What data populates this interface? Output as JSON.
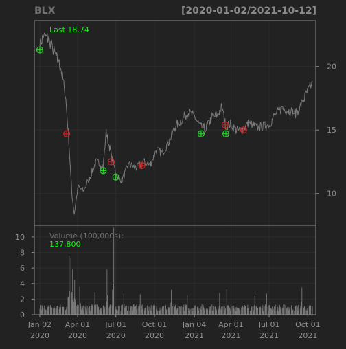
{
  "chart_data": {
    "type": "line",
    "symbol": "BLX",
    "date_range": "[2020-01-02/2021-10-12]",
    "theme": {
      "background": "#222222",
      "panel_border": "#8a8a8a",
      "price_line": "#7a7a7a",
      "grid": "#2c2c2c",
      "axis_text": "#8f8f8f",
      "highlight_text": "#00ff00",
      "buy_marker": "#33cc33",
      "sell_marker": "#cc2222"
    },
    "price_panel": {
      "last_label": "Last 18.74",
      "y_ticks": [
        10,
        15,
        20
      ],
      "ylim": [
        7.5,
        23.6
      ],
      "anchor_points": [
        {
          "date": "2020-01-02",
          "value": 21.6
        },
        {
          "date": "2020-01-10",
          "value": 22.4
        },
        {
          "date": "2020-01-24",
          "value": 22.1
        },
        {
          "date": "2020-02-07",
          "value": 21.0
        },
        {
          "date": "2020-02-21",
          "value": 19.9
        },
        {
          "date": "2020-03-03",
          "value": 17.8
        },
        {
          "date": "2020-03-10",
          "value": 14.8
        },
        {
          "date": "2020-03-18",
          "value": 10.1
        },
        {
          "date": "2020-03-24",
          "value": 8.4
        },
        {
          "date": "2020-04-02",
          "value": 10.5
        },
        {
          "date": "2020-04-15",
          "value": 10.2
        },
        {
          "date": "2020-05-01",
          "value": 11.4
        },
        {
          "date": "2020-05-15",
          "value": 12.5
        },
        {
          "date": "2020-06-01",
          "value": 12.2
        },
        {
          "date": "2020-06-08",
          "value": 14.8
        },
        {
          "date": "2020-06-20",
          "value": 13.1
        },
        {
          "date": "2020-07-01",
          "value": 11.6
        },
        {
          "date": "2020-07-15",
          "value": 11.0
        },
        {
          "date": "2020-08-01",
          "value": 12.3
        },
        {
          "date": "2020-08-20",
          "value": 12.0
        },
        {
          "date": "2020-09-05",
          "value": 12.5
        },
        {
          "date": "2020-09-20",
          "value": 12.2
        },
        {
          "date": "2020-10-05",
          "value": 13.4
        },
        {
          "date": "2020-10-20",
          "value": 13.2
        },
        {
          "date": "2020-11-05",
          "value": 14.1
        },
        {
          "date": "2020-11-20",
          "value": 15.3
        },
        {
          "date": "2020-12-05",
          "value": 15.8
        },
        {
          "date": "2020-12-20",
          "value": 16.4
        },
        {
          "date": "2021-01-05",
          "value": 16.0
        },
        {
          "date": "2021-01-20",
          "value": 15.2
        },
        {
          "date": "2021-02-01",
          "value": 15.1
        },
        {
          "date": "2021-02-15",
          "value": 16.0
        },
        {
          "date": "2021-03-01",
          "value": 16.2
        },
        {
          "date": "2021-03-10",
          "value": 16.8
        },
        {
          "date": "2021-03-20",
          "value": 15.3
        },
        {
          "date": "2021-04-01",
          "value": 15.5
        },
        {
          "date": "2021-04-15",
          "value": 14.9
        },
        {
          "date": "2021-05-01",
          "value": 15.1
        },
        {
          "date": "2021-05-15",
          "value": 15.6
        },
        {
          "date": "2021-06-01",
          "value": 15.2
        },
        {
          "date": "2021-06-20",
          "value": 15.3
        },
        {
          "date": "2021-07-01",
          "value": 15.4
        },
        {
          "date": "2021-07-15",
          "value": 16.2
        },
        {
          "date": "2021-08-01",
          "value": 16.7
        },
        {
          "date": "2021-08-20",
          "value": 16.5
        },
        {
          "date": "2021-09-05",
          "value": 16.3
        },
        {
          "date": "2021-09-20",
          "value": 17.3
        },
        {
          "date": "2021-10-01",
          "value": 18.0
        },
        {
          "date": "2021-10-12",
          "value": 18.74
        }
      ],
      "buy_markers": [
        {
          "date": "2020-01-02",
          "value": 21.3
        },
        {
          "date": "2020-06-01",
          "value": 11.8
        },
        {
          "date": "2020-07-01",
          "value": 11.3
        },
        {
          "date": "2021-01-20",
          "value": 14.7
        },
        {
          "date": "2021-03-20",
          "value": 14.7
        }
      ],
      "sell_markers": [
        {
          "date": "2020-03-06",
          "value": 14.7
        },
        {
          "date": "2020-06-20",
          "value": 12.5
        },
        {
          "date": "2020-09-01",
          "value": 12.2
        },
        {
          "date": "2021-03-18",
          "value": 15.4
        },
        {
          "date": "2021-05-01",
          "value": 15.0
        }
      ]
    },
    "volume_panel": {
      "title": "Volume (100,000s):",
      "last_value": "137,800",
      "y_ticks": [
        0,
        2,
        4,
        6,
        8,
        10
      ],
      "ylim": [
        0,
        11.5
      ],
      "baseline": 1.0,
      "spikes": [
        {
          "date": "2020-03-12",
          "value": 7.6
        },
        {
          "date": "2020-03-16",
          "value": 7.3
        },
        {
          "date": "2020-03-20",
          "value": 5.8
        },
        {
          "date": "2020-03-25",
          "value": 4.5
        },
        {
          "date": "2020-04-06",
          "value": 3.6
        },
        {
          "date": "2020-05-12",
          "value": 2.9
        },
        {
          "date": "2020-06-10",
          "value": 5.8
        },
        {
          "date": "2020-06-26",
          "value": 11.2
        },
        {
          "date": "2020-07-20",
          "value": 2.7
        },
        {
          "date": "2020-08-28",
          "value": 2.6
        },
        {
          "date": "2020-11-10",
          "value": 3.2
        },
        {
          "date": "2020-12-18",
          "value": 2.5
        },
        {
          "date": "2021-03-05",
          "value": 2.8
        },
        {
          "date": "2021-03-22",
          "value": 3.3
        },
        {
          "date": "2021-05-28",
          "value": 2.4
        },
        {
          "date": "2021-06-25",
          "value": 2.7
        },
        {
          "date": "2021-09-17",
          "value": 3.5
        }
      ]
    },
    "x_axis": {
      "range": [
        "2019-12-20",
        "2021-10-20"
      ],
      "ticks": [
        {
          "date": "2020-01-02",
          "line1": "Jan 02",
          "line2": "2020"
        },
        {
          "date": "2020-04-01",
          "line1": "Apr 01",
          "line2": "2020"
        },
        {
          "date": "2020-07-01",
          "line1": "Jul 01",
          "line2": "2020"
        },
        {
          "date": "2020-10-01",
          "line1": "Oct 01",
          "line2": "2020"
        },
        {
          "date": "2021-01-04",
          "line1": "Jan 04",
          "line2": "2021"
        },
        {
          "date": "2021-04-01",
          "line1": "Apr 01",
          "line2": "2021"
        },
        {
          "date": "2021-07-01",
          "line1": "Jul 01",
          "line2": "2021"
        },
        {
          "date": "2021-10-01",
          "line1": "Oct 01",
          "line2": "2021"
        }
      ]
    }
  }
}
